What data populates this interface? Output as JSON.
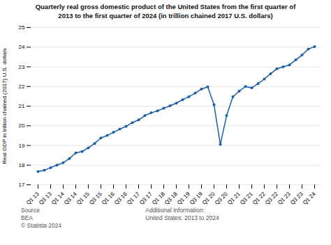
{
  "chart_data": {
    "type": "line",
    "title": "Quarterly real gross domestic product of the United States from the first quarter of",
    "subtitle": "2013 to the first quarter of 2024 (in trillion chained 2017 U.S. dollars)",
    "ylabel": "Real GDP in trillion chained (2017) U.S. dollars",
    "categories": [
      "Q1 13",
      null,
      "Q3 13",
      null,
      "Q1 14",
      null,
      "Q3 14",
      null,
      "Q1 15",
      null,
      "Q3 15",
      null,
      "Q1 16",
      null,
      "Q3 16",
      null,
      "Q1 17",
      null,
      "Q3 17",
      null,
      "Q1 18",
      null,
      "Q3 18",
      null,
      "Q1 19",
      null,
      "Q3 19",
      null,
      "Q1 20",
      null,
      "Q3 20",
      null,
      "Q1 21",
      null,
      "Q3 21",
      null,
      "Q1 22",
      null,
      "Q3 22",
      null,
      "Q1 23",
      null,
      "Q3 23",
      null,
      "Q1 24"
    ],
    "values": [
      17.67,
      17.74,
      17.87,
      18.0,
      18.12,
      18.34,
      18.62,
      18.69,
      18.88,
      19.1,
      19.38,
      19.51,
      19.67,
      19.83,
      19.97,
      20.16,
      20.3,
      20.52,
      20.66,
      20.76,
      20.89,
      21.02,
      21.15,
      21.33,
      21.48,
      21.66,
      21.87,
      21.98,
      21.07,
      19.05,
      20.52,
      21.48,
      21.76,
      22.0,
      21.93,
      22.14,
      22.38,
      22.65,
      22.9,
      23.0,
      23.1,
      23.35,
      23.6,
      23.9,
      24.03
    ],
    "color": "#1a5ea8",
    "marker": "circle",
    "ylim": [
      17,
      25
    ],
    "yticks": [
      17,
      18,
      19,
      20,
      21,
      22,
      23,
      24,
      25
    ],
    "grid": true,
    "annotations": [
      "Source\nBEA\n© Statista 2024",
      "Additional Information:\nUnited States: 2013 to 2024"
    ]
  }
}
